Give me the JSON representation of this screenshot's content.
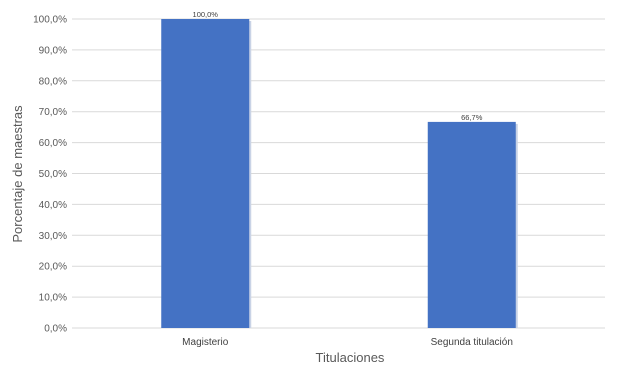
{
  "chart_data": {
    "type": "bar",
    "categories": [
      "Magisterio",
      "Segunda titulación"
    ],
    "values": [
      100.0,
      66.7
    ],
    "value_labels": [
      "100,0%",
      "66,7%"
    ],
    "xlabel": "Titulaciones",
    "ylabel": "Porcentaje de maestras",
    "ylim": [
      0,
      100
    ],
    "yticks": [
      "0,0%",
      "10,0%",
      "20,0%",
      "30,0%",
      "40,0%",
      "50,0%",
      "60,0%",
      "70,0%",
      "80,0%",
      "90,0%",
      "100,0%"
    ],
    "grid": true,
    "legend": "none",
    "bar_color": "#4472C4",
    "grid_color": "#D9D9D9"
  }
}
